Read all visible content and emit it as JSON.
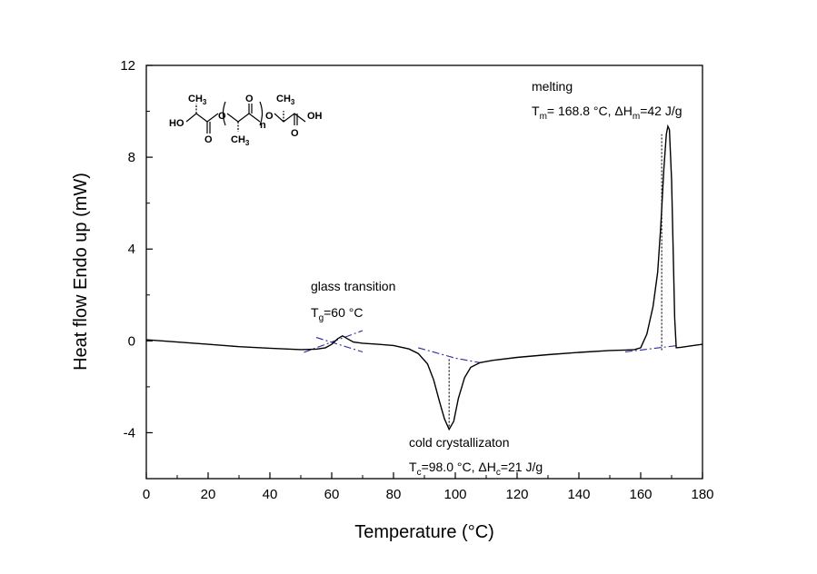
{
  "chart_data": {
    "type": "line",
    "title": "",
    "xlabel": "Temperature (°C)",
    "ylabel": "Heat flow Endo up (mW)",
    "xlim": [
      0,
      180
    ],
    "ylim": [
      -6,
      12
    ],
    "x_ticks": [
      "0",
      "20",
      "40",
      "60",
      "80",
      "100",
      "120",
      "140",
      "160",
      "180"
    ],
    "y_ticks": [
      "12",
      "8",
      "4",
      "0",
      "-4"
    ],
    "grid": false,
    "series": [
      {
        "points": [
          [
            0,
            0.05
          ],
          [
            10,
            -0.05
          ],
          [
            20,
            -0.15
          ],
          [
            30,
            -0.25
          ],
          [
            40,
            -0.32
          ],
          [
            50,
            -0.38
          ],
          [
            55,
            -0.36
          ],
          [
            58,
            -0.3
          ],
          [
            60,
            -0.15
          ],
          [
            62,
            0.1
          ],
          [
            63.5,
            0.22
          ],
          [
            65,
            0.1
          ],
          [
            67,
            -0.05
          ],
          [
            70,
            -0.1
          ],
          [
            75,
            -0.15
          ],
          [
            80,
            -0.2
          ],
          [
            85,
            -0.35
          ],
          [
            88,
            -0.55
          ],
          [
            91,
            -1.0
          ],
          [
            93,
            -1.7
          ],
          [
            95,
            -2.7
          ],
          [
            96.5,
            -3.4
          ],
          [
            98,
            -3.85
          ],
          [
            99.5,
            -3.5
          ],
          [
            101,
            -2.5
          ],
          [
            103,
            -1.6
          ],
          [
            105,
            -1.15
          ],
          [
            108,
            -0.95
          ],
          [
            112,
            -0.85
          ],
          [
            120,
            -0.72
          ],
          [
            130,
            -0.6
          ],
          [
            140,
            -0.5
          ],
          [
            150,
            -0.42
          ],
          [
            155,
            -0.4
          ],
          [
            158,
            -0.38
          ],
          [
            160,
            -0.3
          ],
          [
            162,
            0.3
          ],
          [
            164,
            1.5
          ],
          [
            165.5,
            3.0
          ],
          [
            166.5,
            5.0
          ],
          [
            167.5,
            7.5
          ],
          [
            168.3,
            9.0
          ],
          [
            168.8,
            9.35
          ],
          [
            169.3,
            9.2
          ],
          [
            170,
            7.0
          ],
          [
            170.5,
            4.0
          ],
          [
            171,
            1.0
          ],
          [
            171.5,
            -0.3
          ],
          [
            173,
            -0.28
          ],
          [
            176,
            -0.22
          ],
          [
            180,
            -0.15
          ]
        ]
      }
    ],
    "baselines": [
      {
        "style": "dash-dot",
        "points": [
          [
            51,
            -0.5
          ],
          [
            70,
            0.45
          ]
        ]
      },
      {
        "style": "dash-dot",
        "points": [
          [
            55,
            0.15
          ],
          [
            70,
            -0.48
          ]
        ]
      },
      {
        "style": "dash-dot",
        "points": [
          [
            88,
            -0.3
          ],
          [
            100,
            -0.75
          ],
          [
            108,
            -0.95
          ]
        ]
      },
      {
        "style": "dash-dot",
        "points": [
          [
            155,
            -0.48
          ],
          [
            172,
            -0.2
          ]
        ]
      }
    ],
    "markers": [
      {
        "x": 98.0,
        "y_from": -0.8,
        "y_to": -3.85
      },
      {
        "x": 166.8,
        "y_from": -0.4,
        "y_to": 9.0
      }
    ],
    "annotations": {
      "glass_transition": {
        "label": "glass transition",
        "t_sym": "T",
        "t_sub": "g",
        "t_val": "=60 °C"
      },
      "cold_crystallization": {
        "label": "cold crystallizaton",
        "t_sym": "T",
        "t_sub": "c",
        "t_val": "=98.0 °C, ΔH",
        "h_sub": "c",
        "h_val": "=21 J/g"
      },
      "melting": {
        "label": "melting",
        "t_sym": "T",
        "t_sub": "m",
        "t_val": "= 168.8 °C, ΔH",
        "h_sub": "m",
        "h_val": "=42 J/g"
      }
    },
    "structure_labels": {
      "ho": "HO",
      "oh": "OH",
      "ch3": "CH",
      "three": "3",
      "o": "O",
      "n": "n"
    },
    "colors": {
      "curve": "#000000",
      "baseline": "#2b2b9a",
      "axis": "#000000"
    }
  }
}
